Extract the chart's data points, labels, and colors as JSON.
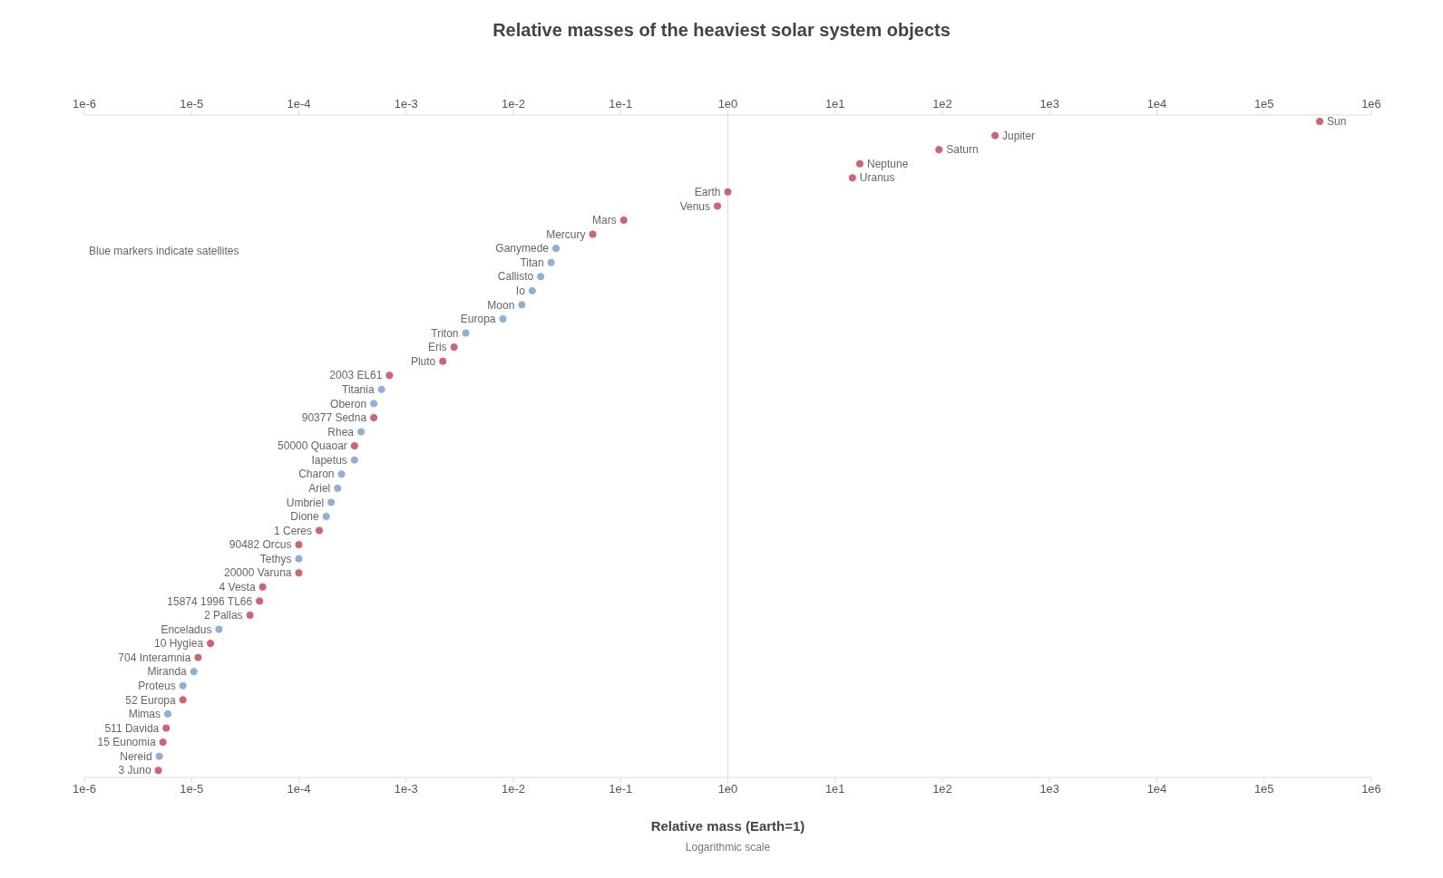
{
  "chart_data": {
    "type": "scatter",
    "orientation": "horizontal",
    "title": "Relative masses of the heaviest solar system objects",
    "xlabel": "Relative mass (Earth=1)",
    "annotations": [
      "Blue markers indicate satellites",
      "Logarithmic scale"
    ],
    "categories": [
      "Sun",
      "Jupiter",
      "Saturn",
      "Neptune",
      "Uranus",
      "Earth",
      "Venus",
      "Mars",
      "Mercury",
      "Ganymede",
      "Titan",
      "Callisto",
      "Io",
      "Moon",
      "Europa",
      "Triton",
      "Eris",
      "Pluto",
      "2003 EL61",
      "Titania",
      "Oberon",
      "90377 Sedna",
      "Rhea",
      "50000 Quaoar",
      "Iapetus",
      "Charon",
      "Ariel",
      "Umbriel",
      "Dione",
      "1 Ceres",
      "90482 Orcus",
      "Tethys",
      "20000 Varuna",
      "4 Vesta",
      "15874 1996 TL66",
      "2 Pallas",
      "Enceladus",
      "10 Hygiea",
      "704 Interamnia",
      "Miranda",
      "Proteus",
      "52 Europa",
      "Mimas",
      "511 Davida",
      "15 Eunomia",
      "Nereid",
      "3 Juno"
    ],
    "series": [
      {
        "color": "#d0646e",
        "values": [
          330000,
          310,
          93,
          17,
          14.5,
          1,
          0.8,
          0.107,
          0.055,
          null,
          null,
          null,
          null,
          null,
          null,
          null,
          0.0028,
          0.0022,
          0.0007,
          null,
          null,
          0.0005,
          null,
          0.00033,
          null,
          null,
          null,
          null,
          null,
          0.000155,
          0.0001,
          null,
          0.0001,
          4.6e-05,
          4.3e-05,
          3.5e-05,
          null,
          1.5e-05,
          1.15e-05,
          null,
          null,
          8.3e-06,
          null,
          5.8e-06,
          5.4e-06,
          null,
          4.9e-06
        ]
      },
      {
        "color": "#8eb0d8",
        "values": [
          null,
          null,
          null,
          null,
          null,
          null,
          null,
          null,
          null,
          0.025,
          0.0225,
          0.018,
          0.015,
          0.012,
          0.008,
          0.0036,
          null,
          null,
          null,
          0.00059,
          0.0005,
          null,
          0.00038,
          null,
          0.00033,
          0.00025,
          0.00023,
          0.0002,
          0.00018,
          null,
          null,
          0.0001,
          null,
          null,
          null,
          null,
          1.8e-05,
          null,
          null,
          1.05e-05,
          8.3e-06,
          null,
          6e-06,
          null,
          null,
          5e-06,
          null
        ]
      }
    ],
    "log": "x",
    "marker": "circle",
    "grid": false,
    "legend": false,
    "xlim": [
      1e-06,
      1000000
    ],
    "xticks": [
      {
        "value": 1e-06,
        "label": "1e-6"
      },
      {
        "value": 1e-05,
        "label": "1e-5"
      },
      {
        "value": 0.0001,
        "label": "1e-4"
      },
      {
        "value": 0.001,
        "label": "1e-3"
      },
      {
        "value": 0.01,
        "label": "1e-2"
      },
      {
        "value": 0.1,
        "label": "1e-1"
      },
      {
        "value": 1,
        "label": "1e0"
      },
      {
        "value": 10,
        "label": "1e1"
      },
      {
        "value": 100,
        "label": "1e2"
      },
      {
        "value": 1000,
        "label": "1e3"
      },
      {
        "value": 10000,
        "label": "1e4"
      },
      {
        "value": 100000,
        "label": "1e5"
      },
      {
        "value": 1000000,
        "label": "1e6"
      }
    ],
    "ref_lines": [
      {
        "axis": "x",
        "value": 1,
        "color": "#dddddd"
      }
    ]
  }
}
